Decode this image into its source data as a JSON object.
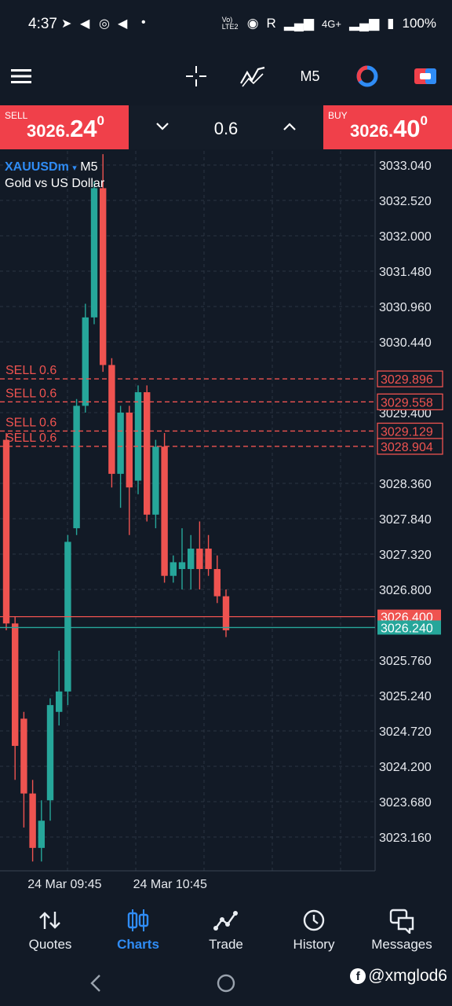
{
  "status_bar": {
    "time": "4:37",
    "network_label": "4G+",
    "battery": "100%",
    "carrier_mark": "R",
    "volte_label": "Vo) LTE2"
  },
  "toolbar": {
    "menu_icon": "hamburger-icon",
    "crosshair_icon": "crosshair-icon",
    "indicators_icon": "indicators-icon",
    "timeframe": "M5",
    "icons": [
      "history-chart-icon",
      "one-click-trading-icon"
    ]
  },
  "trade_bar": {
    "sell": {
      "label": "SELL",
      "price_prefix": "3026.",
      "price_big": "24",
      "price_sup": "0"
    },
    "buy": {
      "label": "BUY",
      "price_prefix": "3026.",
      "price_big": "40",
      "price_sup": "0"
    },
    "volume": "0.6"
  },
  "chart_header": {
    "symbol": "XAUUSDm",
    "timeframe": "M5",
    "description": "Gold vs US Dollar"
  },
  "colors": {
    "background": "#121a26",
    "bull": "#26a69a",
    "bear": "#ef5350",
    "grid": "#2b3442",
    "accent": "#2f8cf5",
    "order_line": "#ef5350",
    "bid_line": "#26a69a"
  },
  "chart_data": {
    "type": "candlestick",
    "y_ticks": [
      "3033.040",
      "3032.520",
      "3032.000",
      "3031.480",
      "3030.960",
      "3030.440",
      "3029.400",
      "3028.360",
      "3027.840",
      "3027.320",
      "3026.800",
      "3025.760",
      "3025.240",
      "3024.720",
      "3024.200",
      "3023.680",
      "3023.160"
    ],
    "x_ticks": [
      {
        "label": "24 Mar 09:45",
        "candle_index": 7
      },
      {
        "label": "24 Mar 10:45",
        "candle_index": 19
      }
    ],
    "candles": [
      {
        "o": 3029.0,
        "c": 3026.3,
        "h": 3029.1,
        "l": 3026.2
      },
      {
        "o": 3026.3,
        "c": 3024.5,
        "h": 3026.4,
        "l": 3024.0
      },
      {
        "o": 3024.9,
        "c": 3023.8,
        "h": 3025.0,
        "l": 3023.3
      },
      {
        "o": 3023.8,
        "c": 3023.0,
        "h": 3024.0,
        "l": 3022.8
      },
      {
        "o": 3023.0,
        "c": 3023.4,
        "h": 3023.7,
        "l": 3022.8
      },
      {
        "o": 3023.7,
        "c": 3025.1,
        "h": 3025.2,
        "l": 3023.4
      },
      {
        "o": 3025.0,
        "c": 3025.3,
        "h": 3025.9,
        "l": 3024.8
      },
      {
        "o": 3025.3,
        "c": 3027.5,
        "h": 3027.6,
        "l": 3025.1
      },
      {
        "o": 3027.7,
        "c": 3029.5,
        "h": 3029.6,
        "l": 3027.6
      },
      {
        "o": 3029.5,
        "c": 3030.8,
        "h": 3031.0,
        "l": 3029.4
      },
      {
        "o": 3030.8,
        "c": 3032.7,
        "h": 3032.8,
        "l": 3030.7
      },
      {
        "o": 3032.7,
        "c": 3030.1,
        "h": 3033.2,
        "l": 3030.0
      },
      {
        "o": 3030.1,
        "c": 3028.5,
        "h": 3030.2,
        "l": 3028.3
      },
      {
        "o": 3028.5,
        "c": 3029.4,
        "h": 3029.5,
        "l": 3028.0
      },
      {
        "o": 3029.4,
        "c": 3028.3,
        "h": 3029.5,
        "l": 3027.6
      },
      {
        "o": 3028.4,
        "c": 3029.7,
        "h": 3029.8,
        "l": 3028.2
      },
      {
        "o": 3029.7,
        "c": 3027.9,
        "h": 3029.8,
        "l": 3027.8
      },
      {
        "o": 3027.9,
        "c": 3028.9,
        "h": 3029.0,
        "l": 3027.7
      },
      {
        "o": 3028.9,
        "c": 3027.0,
        "h": 3029.1,
        "l": 3026.9
      },
      {
        "o": 3027.0,
        "c": 3027.2,
        "h": 3027.3,
        "l": 3026.9
      },
      {
        "o": 3027.1,
        "c": 3027.2,
        "h": 3027.7,
        "l": 3026.8
      },
      {
        "o": 3027.1,
        "c": 3027.4,
        "h": 3027.6,
        "l": 3026.8
      },
      {
        "o": 3027.4,
        "c": 3027.1,
        "h": 3027.8,
        "l": 3026.8
      },
      {
        "o": 3027.4,
        "c": 3027.1,
        "h": 3027.6,
        "l": 3027.0
      },
      {
        "o": 3027.1,
        "c": 3026.7,
        "h": 3027.3,
        "l": 3026.6
      },
      {
        "o": 3026.7,
        "c": 3026.2,
        "h": 3026.8,
        "l": 3026.1
      }
    ],
    "order_lines": [
      {
        "label": "SELL 0.6",
        "price": 3029.896
      },
      {
        "label": "SELL 0.6",
        "price": 3029.558
      },
      {
        "label": "SELL 0.6",
        "price": 3029.129
      },
      {
        "label": "SELL 0.6",
        "price": 3028.904
      }
    ],
    "ask_line": {
      "price": 3026.4,
      "label": "3026.400"
    },
    "bid_line": {
      "price": 3026.24,
      "label": "3026.240"
    }
  },
  "tab_bar": {
    "tabs": [
      {
        "label": "Quotes",
        "icon": "quotes-icon",
        "active": false
      },
      {
        "label": "Charts",
        "icon": "charts-icon",
        "active": true
      },
      {
        "label": "Trade",
        "icon": "trade-icon",
        "active": false
      },
      {
        "label": "History",
        "icon": "history-icon",
        "active": false
      },
      {
        "label": "Messages",
        "icon": "messages-icon",
        "active": false
      }
    ]
  },
  "nav_bar": {
    "back_icon": "back-icon",
    "home_icon": "home-icon"
  },
  "watermark": {
    "text": "@xmglod6",
    "icon": "facebook-icon"
  }
}
